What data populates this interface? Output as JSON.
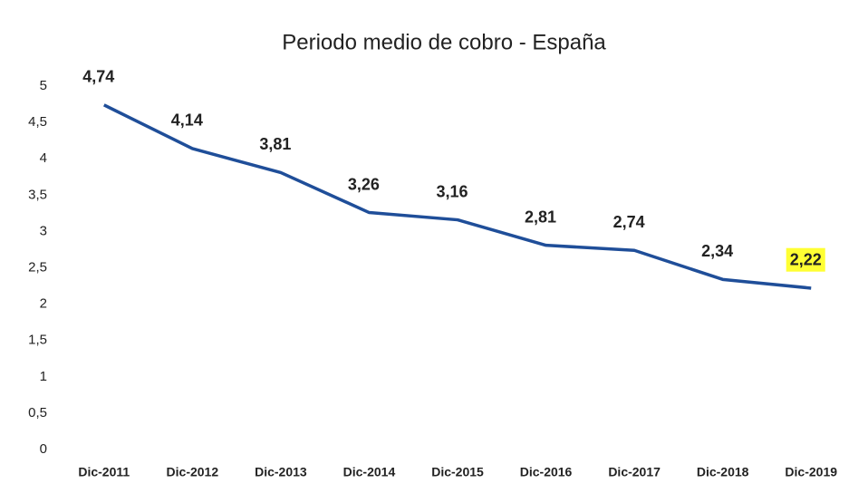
{
  "chart_data": {
    "type": "line",
    "title": "Periodo medio de cobro - España",
    "categories": [
      "Dic-2011",
      "Dic-2012",
      "Dic-2013",
      "Dic-2014",
      "Dic-2015",
      "Dic-2016",
      "Dic-2017",
      "Dic-2018",
      "Dic-2019"
    ],
    "values": [
      4.74,
      4.14,
      3.81,
      3.26,
      3.16,
      2.81,
      2.74,
      2.34,
      2.22
    ],
    "value_labels": [
      "4,74",
      "4,14",
      "3,81",
      "3,26",
      "3,16",
      "2,81",
      "2,74",
      "2,34",
      "2,22"
    ],
    "color": "#1f4e99",
    "ylim": [
      0,
      5
    ],
    "yticks": [
      0,
      {
        "value": 0.5,
        "label": "0,5"
      },
      1,
      {
        "value": 1.5,
        "label": "1,5"
      },
      2,
      {
        "value": 2.5,
        "label": "2,5"
      },
      3,
      {
        "value": 3.5,
        "label": "3,5"
      },
      4,
      {
        "value": 4.5,
        "label": "4,5"
      },
      5
    ],
    "grid": false,
    "highlight": {
      "index": 8,
      "color": "#ffff33"
    }
  }
}
